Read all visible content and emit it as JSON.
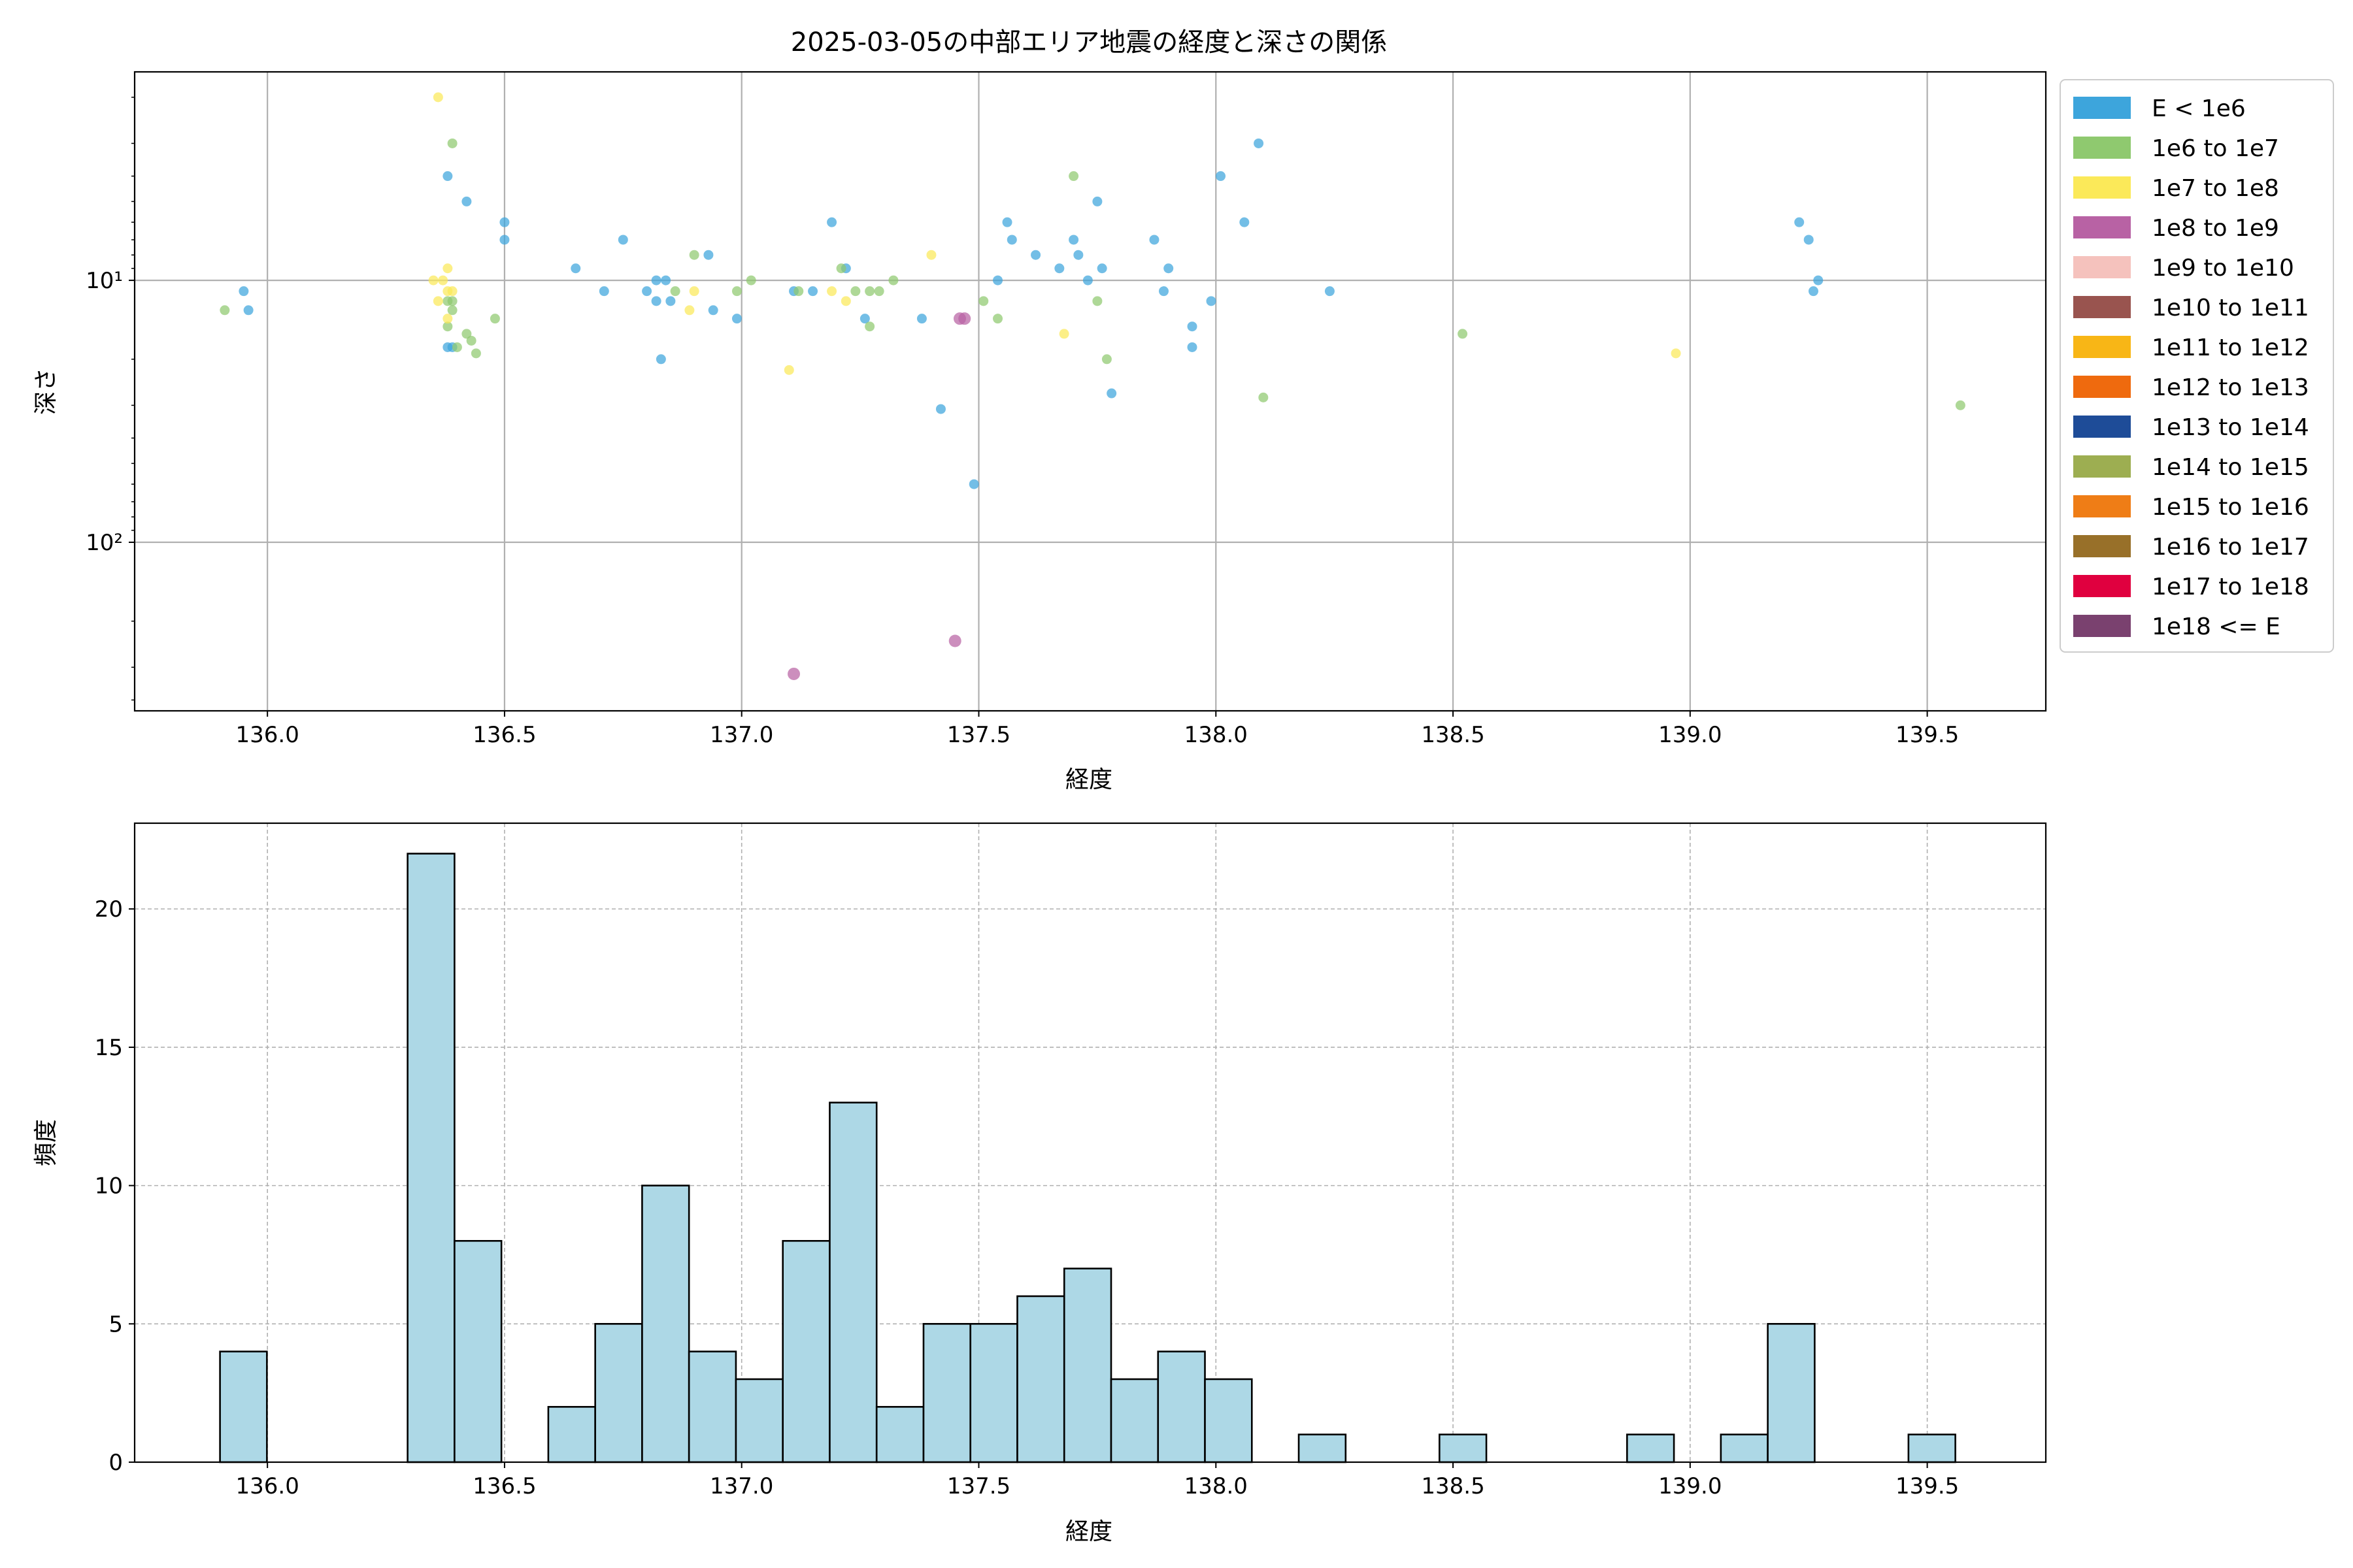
{
  "chart_data": [
    {
      "type": "scatter",
      "title": "2025-03-05の中部エリア地震の経度と深さの関係",
      "xlabel": "経度",
      "ylabel": "深さ",
      "xlim": [
        135.72,
        139.75
      ],
      "ylim": [
        440,
        1.6
      ],
      "yscale": "log",
      "y_inverted": true,
      "grid": true,
      "x_ticks": [
        136.0,
        136.5,
        137.0,
        137.5,
        138.0,
        138.5,
        139.0,
        139.5
      ],
      "x_tick_labels": [
        "136.0",
        "136.5",
        "137.0",
        "137.5",
        "138.0",
        "138.5",
        "139.0",
        "139.5"
      ],
      "y_ticks": [
        10,
        100
      ],
      "y_tick_labels": [
        "10¹",
        "10²"
      ],
      "legend_position": "outside-right",
      "legend": [
        {
          "label": "E < 1e6",
          "color": "#3da5dc"
        },
        {
          "label": "1e6 to 1e7",
          "color": "#8fc96f"
        },
        {
          "label": "1e7 to 1e8",
          "color": "#fbe959"
        },
        {
          "label": "1e8 to 1e9",
          "color": "#b862a4"
        },
        {
          "label": "1e9 to 1e10",
          "color": "#f5c2bd"
        },
        {
          "label": "1e10 to 1e11",
          "color": "#99544f"
        },
        {
          "label": "1e11 to 1e12",
          "color": "#f8b616"
        },
        {
          "label": "1e12 to 1e13",
          "color": "#ef6a0e"
        },
        {
          "label": "1e13 to 1e14",
          "color": "#1e4c98"
        },
        {
          "label": "1e14 to 1e15",
          "color": "#9dae51"
        },
        {
          "label": "1e15 to 1e16",
          "color": "#ef7d16"
        },
        {
          "label": "1e16 to 1e17",
          "color": "#987029"
        },
        {
          "label": "1e17 to 1e18",
          "color": "#e0003f"
        },
        {
          "label": "1e18 <= E",
          "color": "#7a416f"
        }
      ],
      "series": [
        {
          "class": 0,
          "points": [
            [
              135.95,
              11
            ],
            [
              135.96,
              13
            ],
            [
              136.38,
              4
            ],
            [
              136.38,
              18
            ],
            [
              136.39,
              18
            ],
            [
              136.42,
              5
            ],
            [
              136.5,
              6
            ],
            [
              136.5,
              7
            ],
            [
              136.65,
              9
            ],
            [
              136.71,
              11
            ],
            [
              136.75,
              7
            ],
            [
              136.8,
              11
            ],
            [
              136.82,
              10
            ],
            [
              136.82,
              12
            ],
            [
              136.83,
              20
            ],
            [
              136.84,
              10
            ],
            [
              136.85,
              12
            ],
            [
              136.93,
              8
            ],
            [
              136.94,
              13
            ],
            [
              136.99,
              14
            ],
            [
              137.11,
              11
            ],
            [
              137.15,
              11
            ],
            [
              137.19,
              6
            ],
            [
              137.22,
              9
            ],
            [
              137.26,
              14
            ],
            [
              137.38,
              14
            ],
            [
              137.42,
              31
            ],
            [
              137.49,
              60
            ],
            [
              137.54,
              10
            ],
            [
              137.56,
              6
            ],
            [
              137.57,
              7
            ],
            [
              137.62,
              8
            ],
            [
              137.67,
              9
            ],
            [
              137.7,
              7
            ],
            [
              137.71,
              8
            ],
            [
              137.73,
              10
            ],
            [
              137.75,
              5
            ],
            [
              137.76,
              9
            ],
            [
              137.78,
              27
            ],
            [
              137.87,
              7
            ],
            [
              137.89,
              11
            ],
            [
              137.9,
              9
            ],
            [
              137.95,
              15
            ],
            [
              137.95,
              18
            ],
            [
              137.99,
              12
            ],
            [
              138.01,
              4
            ],
            [
              138.06,
              6
            ],
            [
              138.09,
              3
            ],
            [
              138.24,
              11
            ],
            [
              139.23,
              6
            ],
            [
              139.25,
              7
            ],
            [
              139.26,
              11
            ],
            [
              139.27,
              10
            ]
          ]
        },
        {
          "class": 1,
          "points": [
            [
              135.91,
              13
            ],
            [
              136.38,
              15
            ],
            [
              136.38,
              12
            ],
            [
              136.39,
              3
            ],
            [
              136.39,
              12
            ],
            [
              136.39,
              13
            ],
            [
              136.4,
              18
            ],
            [
              136.42,
              16
            ],
            [
              136.43,
              17
            ],
            [
              136.44,
              19
            ],
            [
              136.48,
              14
            ],
            [
              136.86,
              11
            ],
            [
              136.9,
              8
            ],
            [
              136.99,
              11
            ],
            [
              137.02,
              10
            ],
            [
              137.12,
              11
            ],
            [
              137.21,
              9
            ],
            [
              137.24,
              11
            ],
            [
              137.27,
              15
            ],
            [
              137.27,
              11
            ],
            [
              137.29,
              11
            ],
            [
              137.32,
              10
            ],
            [
              137.51,
              12
            ],
            [
              137.54,
              14
            ],
            [
              137.7,
              4
            ],
            [
              137.75,
              12
            ],
            [
              137.77,
              20
            ],
            [
              138.1,
              28
            ],
            [
              138.52,
              16
            ],
            [
              139.57,
              30
            ]
          ]
        },
        {
          "class": 2,
          "points": [
            [
              136.36,
              2
            ],
            [
              136.35,
              10
            ],
            [
              136.36,
              12
            ],
            [
              136.37,
              10
            ],
            [
              136.38,
              9
            ],
            [
              136.38,
              11
            ],
            [
              136.39,
              11
            ],
            [
              136.38,
              14
            ],
            [
              136.89,
              13
            ],
            [
              136.9,
              11
            ],
            [
              137.1,
              22
            ],
            [
              137.19,
              11
            ],
            [
              137.22,
              12
            ],
            [
              137.4,
              8
            ],
            [
              137.68,
              16
            ],
            [
              138.97,
              19
            ]
          ]
        },
        {
          "class": 3,
          "points": [
            [
              137.45,
              238
            ],
            [
              137.46,
              14
            ],
            [
              137.47,
              14
            ],
            [
              137.11,
              318
            ]
          ]
        }
      ]
    },
    {
      "type": "bar",
      "xlabel": "経度",
      "ylabel": "頻度",
      "xlim": [
        135.72,
        139.75
      ],
      "ylim": [
        0,
        23.1
      ],
      "grid": true,
      "x_ticks": [
        136.0,
        136.5,
        137.0,
        137.5,
        138.0,
        138.5,
        139.0,
        139.5
      ],
      "x_tick_labels": [
        "136.0",
        "136.5",
        "137.0",
        "137.5",
        "138.0",
        "138.5",
        "139.0",
        "139.5"
      ],
      "y_ticks": [
        0,
        5,
        10,
        15,
        20
      ],
      "y_tick_labels": [
        "0",
        "5",
        "10",
        "15",
        "20"
      ],
      "bar_color": "#add8e6",
      "edge_color": "#000000",
      "bin_start": 135.9,
      "bin_width": 0.0989,
      "values": [
        4,
        0,
        0,
        0,
        22,
        8,
        0,
        2,
        5,
        10,
        4,
        3,
        8,
        13,
        2,
        5,
        5,
        6,
        7,
        3,
        4,
        3,
        0,
        1,
        0,
        0,
        1,
        0,
        0,
        0,
        1,
        0,
        1,
        5,
        0,
        0,
        1
      ]
    }
  ]
}
